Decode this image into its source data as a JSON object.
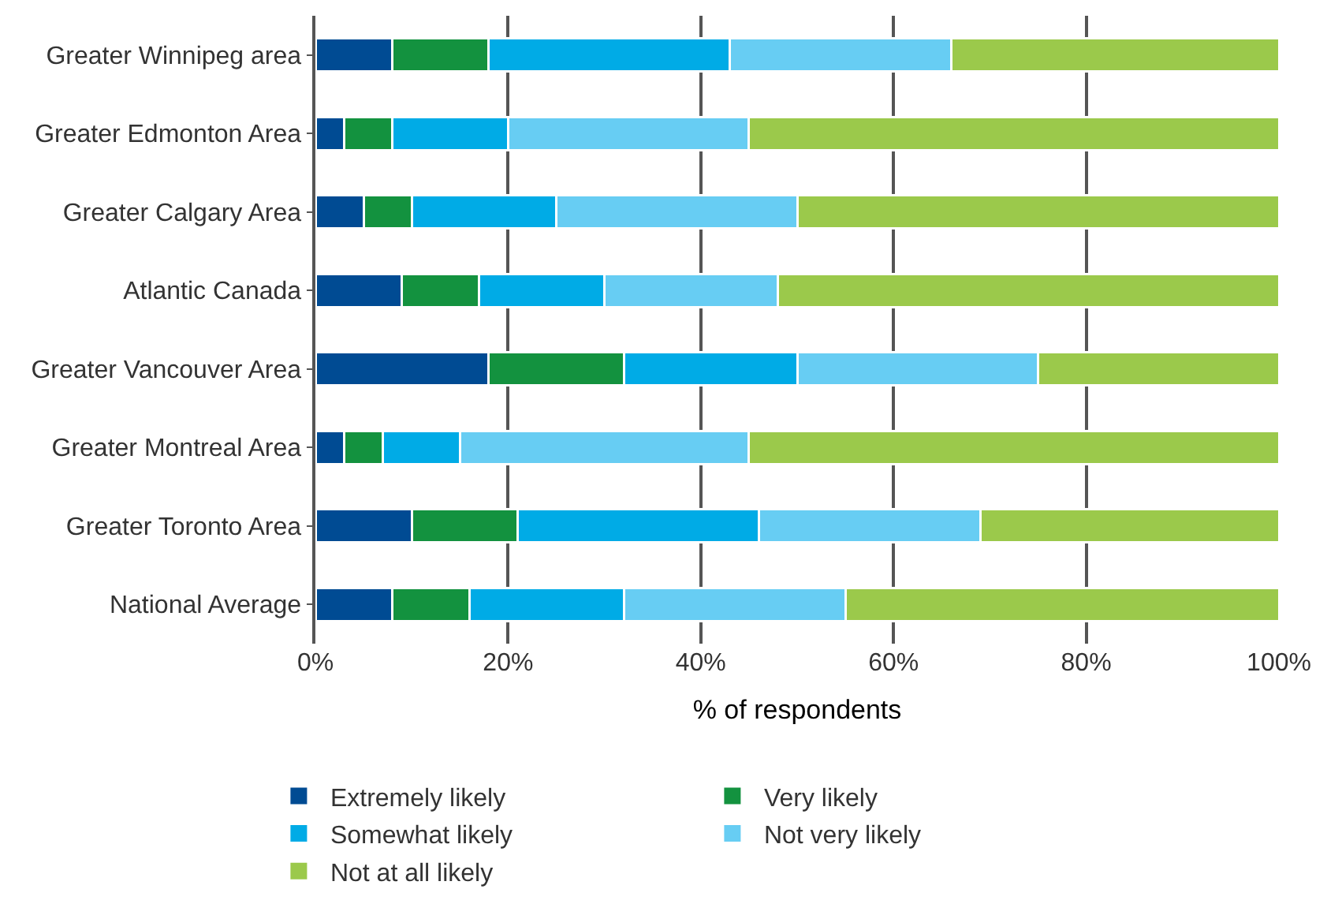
{
  "chart_data": {
    "type": "bar",
    "orientation": "horizontal",
    "stacked": true,
    "xlabel": "% of respondents",
    "categories": [
      "Greater Winnipeg area",
      "Greater Edmonton Area",
      "Greater Calgary Area",
      "Atlantic Canada",
      "Greater Vancouver Area",
      "Greater Montreal Area",
      "Greater Toronto Area",
      "National Average"
    ],
    "series": [
      {
        "name": "Extremely likely",
        "color": "#004b93",
        "values": [
          8,
          3,
          5,
          9,
          18,
          3,
          10,
          8
        ]
      },
      {
        "name": "Very likely",
        "color": "#13923f",
        "values": [
          10,
          5,
          5,
          8,
          14,
          4,
          11,
          8
        ]
      },
      {
        "name": "Somewhat likely",
        "color": "#00abe6",
        "values": [
          25,
          12,
          15,
          13,
          18,
          8,
          25,
          16
        ]
      },
      {
        "name": "Not very likely",
        "color": "#67cdf3",
        "values": [
          23,
          25,
          25,
          18,
          25,
          30,
          23,
          23
        ]
      },
      {
        "name": "Not at all likely",
        "color": "#9bc94b",
        "values": [
          34,
          55,
          50,
          52,
          25,
          55,
          31,
          45
        ]
      }
    ],
    "xlim": [
      0,
      100
    ],
    "xticks": [
      {
        "value": 0,
        "label": "0%"
      },
      {
        "value": 20,
        "label": "20%"
      },
      {
        "value": 40,
        "label": "40%"
      },
      {
        "value": 60,
        "label": "60%"
      },
      {
        "value": 80,
        "label": "80%"
      },
      {
        "value": 100,
        "label": "100%"
      }
    ],
    "grid": "x",
    "legend": "bottom"
  }
}
